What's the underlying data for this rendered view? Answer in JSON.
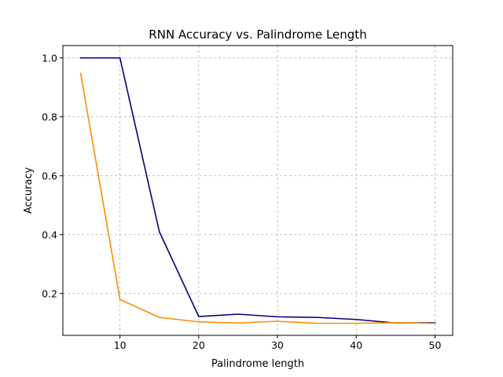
{
  "chart_data": {
    "type": "line",
    "title": "RNN Accuracy vs. Palindrome Length",
    "xlabel": "Palindrome length",
    "ylabel": "Accuracy",
    "xlim": [
      2.75,
      52.25
    ],
    "ylim": [
      0.058,
      1.042
    ],
    "xticks": [
      10,
      20,
      30,
      40,
      50
    ],
    "yticks": [
      0.2,
      0.4,
      0.6,
      0.8,
      1.0
    ],
    "xtick_labels": [
      "10",
      "20",
      "30",
      "40",
      "50"
    ],
    "ytick_labels": [
      "0.2",
      "0.4",
      "0.6",
      "0.8",
      "1.0"
    ],
    "grid": true,
    "x": [
      5,
      10,
      15,
      20,
      25,
      30,
      35,
      40,
      45,
      50
    ],
    "series": [
      {
        "color": "#00007f",
        "values": [
          1.0,
          1.0,
          0.41,
          0.122,
          0.13,
          0.121,
          0.119,
          0.112,
          0.1,
          0.101
        ]
      },
      {
        "color": "#ff8c00",
        "values": [
          0.948,
          0.18,
          0.119,
          0.104,
          0.1,
          0.106,
          0.099,
          0.099,
          0.101,
          0.099
        ]
      }
    ]
  }
}
